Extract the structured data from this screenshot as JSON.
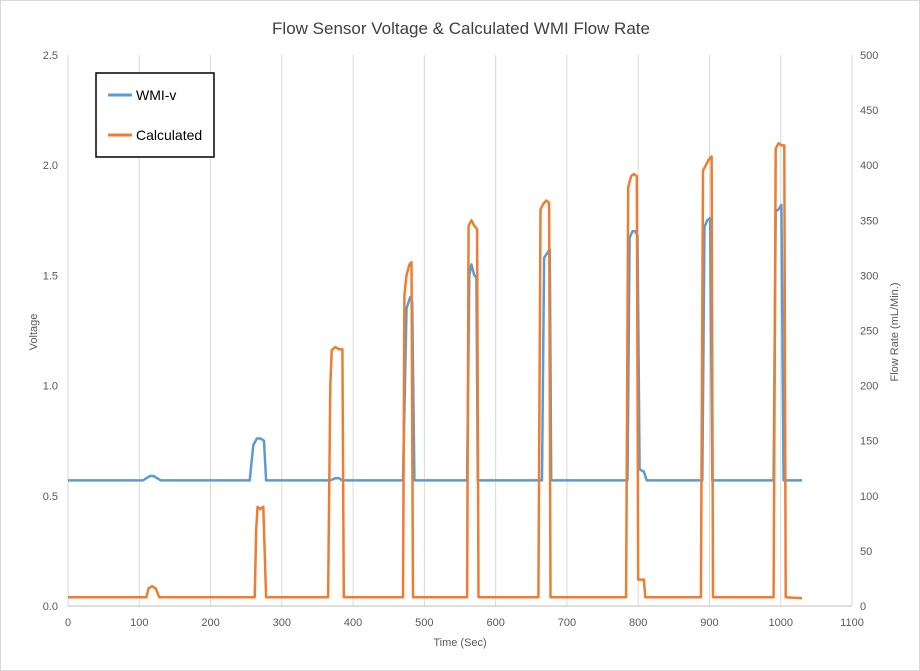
{
  "chart_data": {
    "type": "line",
    "title": "Flow Sensor Voltage & Calculated WMI Flow Rate",
    "xlabel": "Time (Sec)",
    "ylabel": "Voltage",
    "y2label": "Flow Rate (mL/Min.)",
    "xlim": [
      0,
      1100
    ],
    "ylim": [
      0,
      2.5
    ],
    "y2lim": [
      0,
      500
    ],
    "x_ticks": [
      "0",
      "100",
      "200",
      "300",
      "400",
      "500",
      "600",
      "700",
      "800",
      "900",
      "1000",
      "1100"
    ],
    "y_ticks": [
      "0.0",
      "0.5",
      "1.0",
      "1.5",
      "2.0",
      "2.5"
    ],
    "y2_ticks": [
      "0",
      "50",
      "100",
      "150",
      "200",
      "250",
      "300",
      "350",
      "400",
      "450",
      "500"
    ],
    "grid": "vertical",
    "legend_position": "top-left",
    "series": [
      {
        "name": "WMI-v",
        "axis": "left",
        "color": "#5b9bd5",
        "points": [
          [
            0,
            0.57
          ],
          [
            105,
            0.57
          ],
          [
            110,
            0.58
          ],
          [
            115,
            0.59
          ],
          [
            120,
            0.59
          ],
          [
            125,
            0.58
          ],
          [
            130,
            0.57
          ],
          [
            255,
            0.57
          ],
          [
            260,
            0.73
          ],
          [
            265,
            0.76
          ],
          [
            270,
            0.76
          ],
          [
            275,
            0.75
          ],
          [
            278,
            0.57
          ],
          [
            365,
            0.57
          ],
          [
            368,
            0.57
          ],
          [
            375,
            0.58
          ],
          [
            380,
            0.58
          ],
          [
            385,
            0.57
          ],
          [
            470,
            0.57
          ],
          [
            475,
            1.35
          ],
          [
            478,
            1.38
          ],
          [
            480,
            1.4
          ],
          [
            483,
            1.38
          ],
          [
            486,
            0.57
          ],
          [
            560,
            0.57
          ],
          [
            563,
            1.5
          ],
          [
            566,
            1.55
          ],
          [
            570,
            1.5
          ],
          [
            573,
            1.49
          ],
          [
            575,
            0.57
          ],
          [
            665,
            0.57
          ],
          [
            668,
            1.58
          ],
          [
            672,
            1.6
          ],
          [
            676,
            1.62
          ],
          [
            678,
            0.57
          ],
          [
            785,
            0.57
          ],
          [
            788,
            1.67
          ],
          [
            792,
            1.7
          ],
          [
            796,
            1.7
          ],
          [
            799,
            1.68
          ],
          [
            802,
            0.62
          ],
          [
            808,
            0.61
          ],
          [
            812,
            0.57
          ],
          [
            890,
            0.57
          ],
          [
            893,
            1.72
          ],
          [
            897,
            1.75
          ],
          [
            901,
            1.76
          ],
          [
            904,
            0.57
          ],
          [
            990,
            0.57
          ],
          [
            993,
            1.79
          ],
          [
            997,
            1.8
          ],
          [
            1001,
            1.82
          ],
          [
            1004,
            0.57
          ],
          [
            1030,
            0.57
          ]
        ]
      },
      {
        "name": "Calculated",
        "axis": "right",
        "color": "#ed7d31",
        "points": [
          [
            0,
            8
          ],
          [
            110,
            8
          ],
          [
            113,
            16
          ],
          [
            118,
            18
          ],
          [
            123,
            16
          ],
          [
            128,
            8
          ],
          [
            262,
            8
          ],
          [
            264,
            70
          ],
          [
            266,
            90
          ],
          [
            270,
            88
          ],
          [
            274,
            90
          ],
          [
            278,
            8
          ],
          [
            365,
            8
          ],
          [
            368,
            200
          ],
          [
            370,
            232
          ],
          [
            375,
            235
          ],
          [
            380,
            233
          ],
          [
            385,
            233
          ],
          [
            387,
            8
          ],
          [
            470,
            8
          ],
          [
            472,
            282
          ],
          [
            475,
            300
          ],
          [
            479,
            310
          ],
          [
            482,
            312
          ],
          [
            484,
            8
          ],
          [
            560,
            8
          ],
          [
            562,
            345
          ],
          [
            566,
            350
          ],
          [
            570,
            345
          ],
          [
            574,
            342
          ],
          [
            576,
            8
          ],
          [
            660,
            8
          ],
          [
            663,
            360
          ],
          [
            667,
            365
          ],
          [
            671,
            368
          ],
          [
            675,
            366
          ],
          [
            677,
            8
          ],
          [
            783,
            8
          ],
          [
            786,
            380
          ],
          [
            790,
            390
          ],
          [
            794,
            392
          ],
          [
            798,
            390
          ],
          [
            800,
            24
          ],
          [
            808,
            24
          ],
          [
            810,
            8
          ],
          [
            888,
            8
          ],
          [
            891,
            395
          ],
          [
            895,
            400
          ],
          [
            899,
            405
          ],
          [
            903,
            408
          ],
          [
            905,
            8
          ],
          [
            990,
            8
          ],
          [
            993,
            415
          ],
          [
            997,
            420
          ],
          [
            1001,
            418
          ],
          [
            1005,
            418
          ],
          [
            1007,
            8
          ],
          [
            1030,
            7
          ]
        ]
      }
    ]
  }
}
